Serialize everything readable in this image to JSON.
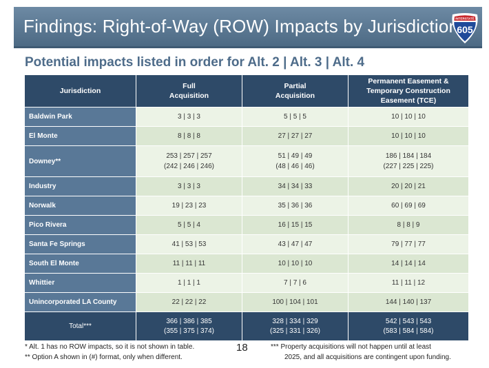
{
  "title": "Findings: Right-of-Way (ROW) Impacts by Jurisdiction",
  "shield": {
    "top_text": "INTERSTATE",
    "number": "605",
    "icon": "interstate-shield-icon"
  },
  "subtitle": "Potential impacts listed in order for Alt. 2 | Alt. 3 | Alt. 4",
  "table": {
    "headers": {
      "jurisdiction": "Jurisdiction",
      "full": [
        "Full",
        "Acquisition"
      ],
      "partial": [
        "Partial",
        "Acquisition"
      ],
      "easement": [
        "Permanent Easement &",
        "Temporary Construction",
        "Easement (TCE)"
      ]
    },
    "rows": [
      {
        "jurisdiction": "Baldwin Park",
        "full": [
          "3 | 3 | 3"
        ],
        "partial": [
          "5 | 5 | 5"
        ],
        "easement": [
          "10 | 10 | 10"
        ]
      },
      {
        "jurisdiction": "El Monte",
        "full": [
          "8 | 8 | 8"
        ],
        "partial": [
          "27 | 27 | 27"
        ],
        "easement": [
          "10 | 10 | 10"
        ]
      },
      {
        "jurisdiction": "Downey**",
        "full": [
          "253 | 257 | 257",
          "(242 | 246 | 246)"
        ],
        "partial": [
          "51 | 49 | 49",
          "(48 | 46 | 46)"
        ],
        "easement": [
          "186 | 184 | 184",
          "(227 | 225 | 225)"
        ]
      },
      {
        "jurisdiction": "Industry",
        "full": [
          "3 | 3 | 3"
        ],
        "partial": [
          "34 | 34 | 33"
        ],
        "easement": [
          "20 | 20 | 21"
        ]
      },
      {
        "jurisdiction": "Norwalk",
        "full": [
          "19 | 23 | 23"
        ],
        "partial": [
          "35 | 36 | 36"
        ],
        "easement": [
          "60 | 69 | 69"
        ]
      },
      {
        "jurisdiction": "Pico Rivera",
        "full": [
          "5 | 5 | 4"
        ],
        "partial": [
          "16 | 15 | 15"
        ],
        "easement": [
          "8 | 8 | 9"
        ]
      },
      {
        "jurisdiction": "Santa Fe Springs",
        "full": [
          "41 | 53 | 53"
        ],
        "partial": [
          "43 | 47 | 47"
        ],
        "easement": [
          "79 | 77 | 77"
        ]
      },
      {
        "jurisdiction": "South El Monte",
        "full": [
          "11 | 11 | 11"
        ],
        "partial": [
          "10 | 10 | 10"
        ],
        "easement": [
          "14 | 14 | 14"
        ]
      },
      {
        "jurisdiction": "Whittier",
        "full": [
          "1 | 1 | 1"
        ],
        "partial": [
          "7 | 7 | 6"
        ],
        "easement": [
          "11 | 11 | 12"
        ]
      },
      {
        "jurisdiction": "Unincorporated LA County",
        "full": [
          "22 | 22 | 22"
        ],
        "partial": [
          "100 | 104 | 101"
        ],
        "easement": [
          "144 | 140 | 137"
        ]
      }
    ],
    "total": {
      "label": "Total***",
      "full": [
        "366 | 386 | 385",
        "(355 | 375 | 374)"
      ],
      "partial": [
        "328 | 334 | 329",
        "(325 | 331 | 326)"
      ],
      "easement": [
        "542 | 543 | 543",
        "(583 | 584 | 584)"
      ]
    }
  },
  "footnotes": {
    "left": [
      "*  Alt. 1 has no ROW impacts, so it is not shown in table.",
      "** Option A shown in (#) format, only when different."
    ],
    "page_number": "18",
    "right": [
      "*** Property acquisitions will not happen until at least",
      "2025, and all acquisitions are contingent upon funding."
    ]
  }
}
